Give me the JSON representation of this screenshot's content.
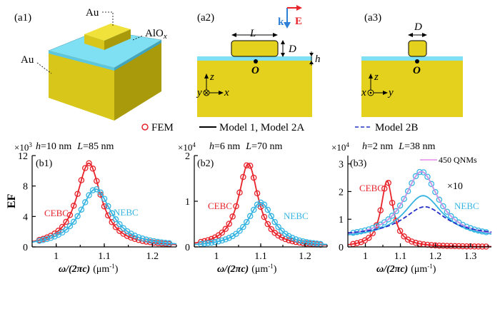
{
  "panels": {
    "a1": {
      "label": "(a1)",
      "au_top": "Au",
      "aluminum_oxide_label": "AlO",
      "aluminum_oxide_subscript": "x",
      "au_substrate": "Au"
    },
    "a2": {
      "label": "(a2)",
      "k_label": "k",
      "e_label": "E",
      "length_label": "L",
      "thickness_label": "D",
      "gap_label": "h",
      "origin_label": "O",
      "axis_z": "z",
      "axis_y": "y",
      "axis_x": "x"
    },
    "a3": {
      "label": "(a3)",
      "width_label": "D",
      "origin_label": "O",
      "axis_z": "z",
      "axis_x": "x",
      "axis_y": "y"
    }
  },
  "legend": {
    "fem": "FEM",
    "model1": "Model 1, Model 2A",
    "model2b": "Model 2B"
  },
  "colors": {
    "gold": "#e3d11e",
    "gold_dark": "#a89a0b",
    "spacer": "#7ee0f2",
    "cebc": "#e8232b",
    "nebc": "#35b4e2",
    "model2b": "#2530c8",
    "qnm": "#e58be6"
  },
  "chart_data": [
    {
      "type": "line",
      "panel_label": "(b1)",
      "multiplier": "×10",
      "multiplier_exp": "3",
      "params_h": "h",
      "params_h_value": "=10 nm",
      "params_L": "L",
      "params_L_value": "=85 nm",
      "ylabel": "EF",
      "xlabel_main": "ω/(2πc)",
      "xlabel_unit": "(μm",
      "xlabel_exp": "-1",
      "xlabel_close": ")",
      "xlim": [
        0.95,
        1.25
      ],
      "ylim": [
        0,
        12
      ],
      "xticks": [
        1,
        1.1,
        1.2
      ],
      "xtick_labels": [
        "1",
        "1.1",
        "1.2"
      ],
      "yticks": [
        0,
        4,
        8,
        12
      ],
      "ytick_labels": [
        "0",
        "4",
        "8",
        "12"
      ],
      "annotations": [
        {
          "text": "CEBC",
          "color": "#e8232b"
        },
        {
          "text": "NEBC",
          "color": "#35b4e2"
        }
      ],
      "series": [
        {
          "name": "CEBC",
          "kind": "lorentz",
          "peak": 11.0,
          "center": 1.068,
          "gamma": 0.031,
          "base": 0,
          "color": "#e8232b",
          "fem": true
        },
        {
          "name": "NEBC",
          "kind": "lorentz",
          "peak": 7.6,
          "center": 1.082,
          "gamma": 0.04,
          "base": 0,
          "color": "#35b4e2",
          "fem": true
        }
      ]
    },
    {
      "type": "line",
      "panel_label": "(b2)",
      "multiplier": "×10",
      "multiplier_exp": "4",
      "params_h": "h",
      "params_h_value": "=6 nm",
      "params_L": "L",
      "params_L_value": "=70 nm",
      "ylabel": "",
      "xlabel_main": "ω/(2πc)",
      "xlabel_unit": "(μm",
      "xlabel_exp": "-1",
      "xlabel_close": ")",
      "xlim": [
        0.95,
        1.25
      ],
      "ylim": [
        0,
        2
      ],
      "xticks": [
        1,
        1.1,
        1.2
      ],
      "xtick_labels": [
        "1",
        "1.1",
        "1.2"
      ],
      "yticks": [
        0,
        1,
        2
      ],
      "ytick_labels": [
        "0",
        "1",
        "2"
      ],
      "annotations": [
        {
          "text": "CEBC",
          "color": "#e8232b"
        },
        {
          "text": "NEBC",
          "color": "#35b4e2"
        }
      ],
      "series": [
        {
          "name": "CEBC",
          "kind": "lorentz",
          "peak": 1.82,
          "center": 1.072,
          "gamma": 0.027,
          "base": 0,
          "color": "#e8232b",
          "fem": true
        },
        {
          "name": "NEBC",
          "kind": "lorentz",
          "peak": 0.97,
          "center": 1.1,
          "gamma": 0.036,
          "base": 0,
          "color": "#35b4e2",
          "fem": true
        }
      ]
    },
    {
      "type": "line",
      "panel_label": "(b3)",
      "multiplier": "×10",
      "multiplier_exp": "4",
      "params_h": "h",
      "params_h_value": "=2 nm",
      "params_L": "L",
      "params_L_value": "=38 nm",
      "ylabel": "",
      "xlabel_main": "ω/(2πc)",
      "xlabel_unit": "(μm",
      "xlabel_exp": "-1",
      "xlabel_close": ")",
      "xlim": [
        0.95,
        1.36
      ],
      "ylim": [
        0,
        3.3
      ],
      "xticks": [
        1,
        1.1,
        1.2,
        1.3
      ],
      "xtick_labels": [
        "1",
        "1.1",
        "1.2",
        "1.3"
      ],
      "yticks": [
        0,
        1,
        2,
        3
      ],
      "ytick_labels": [
        "0",
        "1",
        "2",
        "3"
      ],
      "annotations": [
        {
          "text": "CEBC",
          "color": "#e8232b"
        },
        {
          "text": "NEBC",
          "color": "#35b4e2"
        },
        {
          "text": "×10",
          "color": "#000000"
        },
        {
          "text": "450 QNMs",
          "color": "#000000"
        }
      ],
      "series": [
        {
          "name": "CEBC",
          "kind": "lorentz",
          "peak": 2.38,
          "center": 1.062,
          "gamma": 0.021,
          "base": 0,
          "color": "#e8232b",
          "fem": true
        },
        {
          "name": "NEBC (×10)",
          "kind": "lorentz",
          "peak": 2.72,
          "center": 1.16,
          "gamma": 0.06,
          "base": 0.3,
          "color": "#35b4e2",
          "fem": true
        },
        {
          "name": "450 QNMs",
          "kind": "lorentz",
          "peak": 2.72,
          "center": 1.16,
          "gamma": 0.06,
          "base": 0.3,
          "color": "#e58be6",
          "fem": false,
          "width": 1.4
        },
        {
          "name": "Model 1 NEBC",
          "kind": "lorentz",
          "peak": 1.85,
          "center": 1.165,
          "gamma": 0.068,
          "base": 0.3,
          "color": "#35b4e2",
          "fem": false
        },
        {
          "name": "Model 2B NEBC",
          "kind": "lorentz",
          "peak": 1.45,
          "center": 1.17,
          "gamma": 0.075,
          "base": 0.4,
          "color": "#2530c8",
          "fem": false,
          "dashed": true
        }
      ]
    }
  ]
}
